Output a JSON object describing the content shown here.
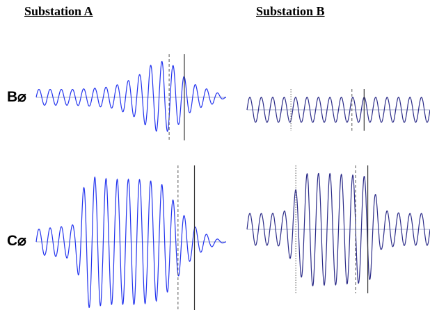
{
  "titles": {
    "substation_a": "Substation A",
    "substation_b": "Substation B"
  },
  "phases": {
    "b": "B⌀",
    "c": "C⌀"
  },
  "colors": {
    "substation_a_trace": "#2233ee",
    "substation_b_trace": "#2b2b88",
    "baseline": "#aab0cc",
    "cursor_solid": "#333333",
    "cursor_dashed": "#555555"
  },
  "chart_data": [
    {
      "type": "line",
      "panel": "Substation A",
      "phase": "B⌀",
      "x": [
        0,
        1,
        2,
        3,
        4,
        5,
        6,
        7,
        8,
        9,
        10,
        11,
        12,
        13,
        14,
        15
      ],
      "series": [
        {
          "values": [
            0.22,
            0.22,
            0.22,
            0.22,
            0.24,
            0.26,
            0.3,
            0.42,
            0.58,
            0.88,
            1.0,
            0.85,
            0.45,
            0.28,
            0.18,
            0.0
          ]
        }
      ],
      "cursors": [
        {
          "x": 10.5,
          "style": "dashed"
        },
        {
          "x": 11.7,
          "style": "solid"
        }
      ]
    },
    {
      "type": "line",
      "panel": "Substation A",
      "phase": "C⌀",
      "x": [
        0,
        1,
        2,
        3,
        4,
        5,
        6,
        7,
        8,
        9,
        10,
        11,
        12,
        13,
        14,
        15
      ],
      "series": [
        {
          "values": [
            0.18,
            0.2,
            0.22,
            0.25,
            0.95,
            0.92,
            0.9,
            0.9,
            0.9,
            0.88,
            0.82,
            0.55,
            0.3,
            0.15,
            0.06,
            0.0
          ]
        }
      ],
      "cursors": [
        {
          "x": 11.2,
          "style": "dashed"
        },
        {
          "x": 12.5,
          "style": "solid"
        }
      ]
    },
    {
      "type": "line",
      "panel": "Substation B",
      "phase": "B⌀",
      "x": [
        0,
        1,
        2,
        3,
        4,
        5,
        6,
        7,
        8,
        9,
        10,
        11,
        12,
        13,
        14,
        15
      ],
      "series": [
        {
          "values": [
            0.9,
            0.9,
            0.9,
            0.9,
            0.9,
            0.9,
            0.9,
            0.9,
            0.9,
            0.9,
            0.9,
            0.9,
            0.9,
            0.9,
            0.9,
            0.9
          ]
        }
      ],
      "cursors": [
        {
          "x": 3.6,
          "style": "dotted"
        },
        {
          "x": 8.6,
          "style": "dashed"
        },
        {
          "x": 9.6,
          "style": "solid"
        }
      ]
    },
    {
      "type": "line",
      "panel": "Substation B",
      "phase": "C⌀",
      "x": [
        0,
        1,
        2,
        3,
        4,
        5,
        6,
        7,
        8,
        9,
        10,
        11,
        12,
        13,
        14,
        15
      ],
      "series": [
        {
          "values": [
            0.28,
            0.28,
            0.28,
            0.3,
            0.7,
            1.0,
            0.98,
            0.98,
            0.96,
            0.95,
            0.92,
            0.35,
            0.3,
            0.28,
            0.28,
            0.28
          ]
        }
      ],
      "cursors": [
        {
          "x": 4.0,
          "style": "dotted"
        },
        {
          "x": 8.9,
          "style": "dashed"
        },
        {
          "x": 9.9,
          "style": "solid"
        }
      ]
    }
  ]
}
